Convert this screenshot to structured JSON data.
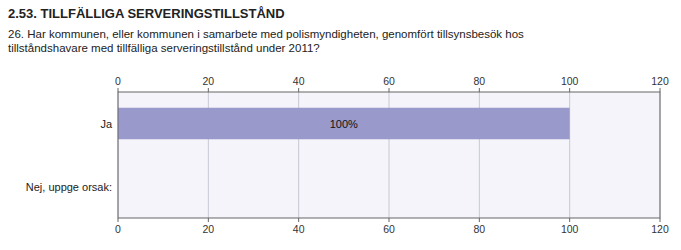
{
  "chart_data": {
    "type": "bar",
    "orientation": "horizontal",
    "title": "2.53. TILLFÄLLIGA SERVERINGSTILLSTÅND",
    "subtitle": "26. Har kommunen, eller kommunen i samarbete med polismyndigheten, genomfört tillsynsbesök hos\ntillståndshavare med tillfälliga serveringstillstånd under 2011?",
    "categories": [
      "Ja",
      "Nej, uppge orsak:"
    ],
    "values": [
      100,
      0
    ],
    "value_labels": [
      "100%",
      null
    ],
    "data_labels": true,
    "color": "#9999cc",
    "xlim": [
      0,
      120
    ],
    "xticks": [
      0,
      20,
      40,
      60,
      80,
      100,
      120
    ],
    "grid": true
  }
}
